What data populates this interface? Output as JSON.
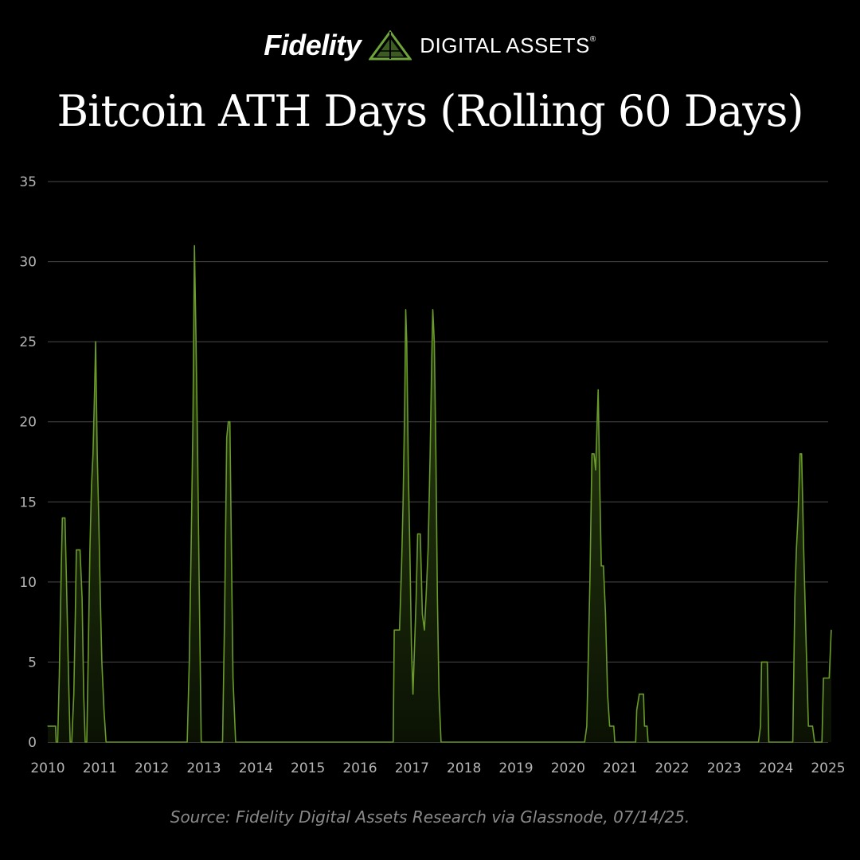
{
  "brand": {
    "name": "Fidelity",
    "subtitle": "DIGITAL ASSETS",
    "registered": "®"
  },
  "title": "Bitcoin ATH Days (Rolling 60 Days)",
  "source": "Source: Fidelity Digital Assets Research via Glassnode, 07/14/25.",
  "colors": {
    "background": "#000000",
    "line": "#6a9a2a",
    "fill_top": "#2f4712",
    "fill_bottom": "#0b1204",
    "grid": "#4a4a4a",
    "logo": "#6ea53a"
  },
  "chart_data": {
    "type": "area",
    "title": "Bitcoin ATH Days (Rolling 60 Days)",
    "xlabel": "",
    "ylabel": "",
    "xlim": [
      2010,
      2025
    ],
    "ylim": [
      0,
      35
    ],
    "x_ticks": [
      "2010",
      "2011",
      "2012",
      "2013",
      "2014",
      "2015",
      "2016",
      "2017",
      "2018",
      "2019",
      "2020",
      "2021",
      "2022",
      "2023",
      "2024",
      "2025"
    ],
    "y_ticks": [
      0,
      5,
      10,
      15,
      20,
      25,
      30,
      35
    ],
    "grid": true,
    "series": [
      {
        "points": [
          [
            2010.0,
            1
          ],
          [
            2010.15,
            1
          ],
          [
            2010.16,
            0
          ],
          [
            2010.19,
            0
          ],
          [
            2010.22,
            4
          ],
          [
            2010.26,
            11
          ],
          [
            2010.28,
            14
          ],
          [
            2010.33,
            14
          ],
          [
            2010.36,
            10
          ],
          [
            2010.4,
            4
          ],
          [
            2010.43,
            0
          ],
          [
            2010.46,
            0
          ],
          [
            2010.5,
            3
          ],
          [
            2010.53,
            8
          ],
          [
            2010.55,
            12
          ],
          [
            2010.62,
            12
          ],
          [
            2010.66,
            9
          ],
          [
            2010.69,
            3
          ],
          [
            2010.72,
            0
          ],
          [
            2010.75,
            0
          ],
          [
            2010.78,
            6
          ],
          [
            2010.81,
            12
          ],
          [
            2010.84,
            16
          ],
          [
            2010.87,
            18
          ],
          [
            2010.9,
            22
          ],
          [
            2010.92,
            25
          ],
          [
            2010.95,
            18
          ],
          [
            2010.98,
            14
          ],
          [
            2011.01,
            9
          ],
          [
            2011.04,
            5
          ],
          [
            2011.08,
            2
          ],
          [
            2011.12,
            0
          ],
          [
            2012.68,
            0
          ],
          [
            2012.72,
            5
          ],
          [
            2012.76,
            13
          ],
          [
            2012.79,
            20
          ],
          [
            2012.82,
            31
          ],
          [
            2012.85,
            25
          ],
          [
            2012.88,
            18
          ],
          [
            2012.91,
            10
          ],
          [
            2012.95,
            0
          ],
          [
            2013.36,
            0
          ],
          [
            2013.4,
            8
          ],
          [
            2013.44,
            19
          ],
          [
            2013.47,
            20
          ],
          [
            2013.5,
            20
          ],
          [
            2013.53,
            12
          ],
          [
            2013.56,
            4
          ],
          [
            2013.61,
            0
          ],
          [
            2016.64,
            0
          ],
          [
            2016.66,
            7
          ],
          [
            2016.76,
            7
          ],
          [
            2016.8,
            11
          ],
          [
            2016.83,
            15
          ],
          [
            2016.86,
            21
          ],
          [
            2016.88,
            27
          ],
          [
            2016.9,
            25
          ],
          [
            2016.93,
            17
          ],
          [
            2016.96,
            12
          ],
          [
            2016.99,
            6
          ],
          [
            2017.02,
            3
          ],
          [
            2017.05,
            6
          ],
          [
            2017.08,
            9
          ],
          [
            2017.11,
            13
          ],
          [
            2017.16,
            13
          ],
          [
            2017.2,
            8
          ],
          [
            2017.24,
            7
          ],
          [
            2017.27,
            9
          ],
          [
            2017.31,
            12
          ],
          [
            2017.35,
            18
          ],
          [
            2017.38,
            24
          ],
          [
            2017.4,
            27
          ],
          [
            2017.43,
            25
          ],
          [
            2017.46,
            18
          ],
          [
            2017.49,
            9
          ],
          [
            2017.52,
            3
          ],
          [
            2017.56,
            0
          ],
          [
            2020.32,
            0
          ],
          [
            2020.36,
            1
          ],
          [
            2020.42,
            10
          ],
          [
            2020.46,
            18
          ],
          [
            2020.5,
            18
          ],
          [
            2020.53,
            17
          ],
          [
            2020.56,
            20
          ],
          [
            2020.58,
            22
          ],
          [
            2020.61,
            16
          ],
          [
            2020.64,
            11
          ],
          [
            2020.68,
            11
          ],
          [
            2020.72,
            8
          ],
          [
            2020.76,
            3
          ],
          [
            2020.8,
            1
          ],
          [
            2020.88,
            1
          ],
          [
            2020.9,
            0
          ],
          [
            2021.3,
            0
          ],
          [
            2021.32,
            2
          ],
          [
            2021.37,
            3
          ],
          [
            2021.45,
            3
          ],
          [
            2021.47,
            1
          ],
          [
            2021.52,
            1
          ],
          [
            2021.54,
            0
          ],
          [
            2023.66,
            0
          ],
          [
            2023.7,
            1
          ],
          [
            2023.72,
            5
          ],
          [
            2023.83,
            5
          ],
          [
            2023.86,
            0
          ],
          [
            2024.32,
            0
          ],
          [
            2024.36,
            9
          ],
          [
            2024.39,
            12
          ],
          [
            2024.42,
            14
          ],
          [
            2024.46,
            18
          ],
          [
            2024.49,
            18
          ],
          [
            2024.53,
            12
          ],
          [
            2024.57,
            7
          ],
          [
            2024.62,
            1
          ],
          [
            2024.7,
            1
          ],
          [
            2024.74,
            0
          ],
          [
            2024.88,
            0
          ],
          [
            2024.91,
            4
          ],
          [
            2025.02,
            4
          ],
          [
            2025.06,
            7
          ]
        ]
      }
    ]
  }
}
